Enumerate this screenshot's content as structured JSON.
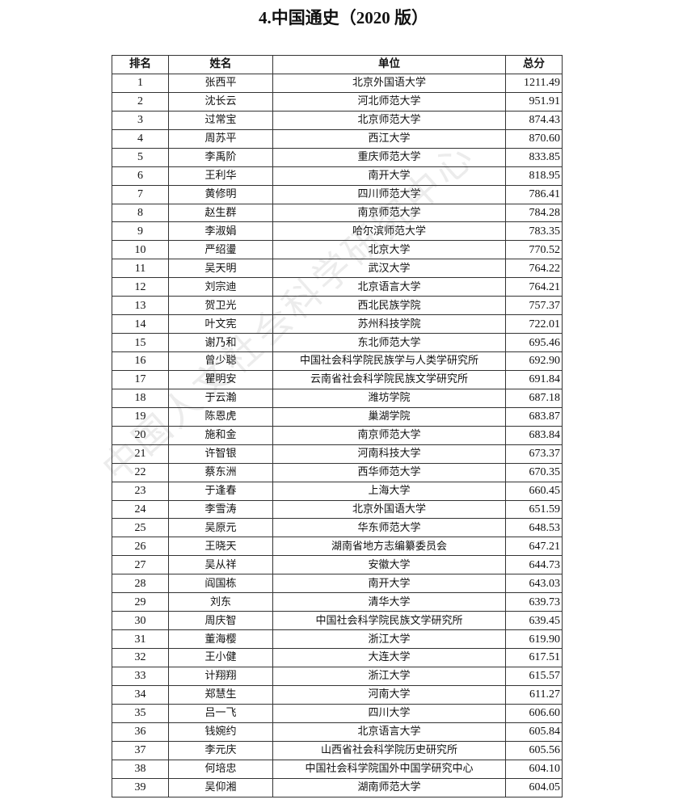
{
  "title": "4.中国通史（2020 版）",
  "table": {
    "headers": [
      "排名",
      "姓名",
      "单位",
      "总分"
    ],
    "rows": [
      [
        "1",
        "张西平",
        "北京外国语大学",
        "1211.49"
      ],
      [
        "2",
        "沈长云",
        "河北师范大学",
        "951.91"
      ],
      [
        "3",
        "过常宝",
        "北京师范大学",
        "874.43"
      ],
      [
        "4",
        "周苏平",
        "西江大学",
        "870.60"
      ],
      [
        "5",
        "李禹阶",
        "重庆师范大学",
        "833.85"
      ],
      [
        "6",
        "王利华",
        "南开大学",
        "818.95"
      ],
      [
        "7",
        "黄修明",
        "四川师范大学",
        "786.41"
      ],
      [
        "8",
        "赵生群",
        "南京师范大学",
        "784.28"
      ],
      [
        "9",
        "李淑娟",
        "哈尔滨师范大学",
        "783.35"
      ],
      [
        "10",
        "严绍璗",
        "北京大学",
        "770.52"
      ],
      [
        "11",
        "吴天明",
        "武汉大学",
        "764.22"
      ],
      [
        "12",
        "刘宗迪",
        "北京语言大学",
        "764.21"
      ],
      [
        "13",
        "贺卫光",
        "西北民族学院",
        "757.37"
      ],
      [
        "14",
        "叶文宪",
        "苏州科技学院",
        "722.01"
      ],
      [
        "15",
        "谢乃和",
        "东北师范大学",
        "695.46"
      ],
      [
        "16",
        "曾少聪",
        "中国社会科学院民族学与人类学研究所",
        "692.90"
      ],
      [
        "17",
        "瞿明安",
        "云南省社会科学院民族文学研究所",
        "691.84"
      ],
      [
        "18",
        "于云瀚",
        "潍坊学院",
        "687.18"
      ],
      [
        "19",
        "陈恩虎",
        "巢湖学院",
        "683.87"
      ],
      [
        "20",
        "施和金",
        "南京师范大学",
        "683.84"
      ],
      [
        "21",
        "许智银",
        "河南科技大学",
        "673.37"
      ],
      [
        "22",
        "蔡东洲",
        "西华师范大学",
        "670.35"
      ],
      [
        "23",
        "于逢春",
        "上海大学",
        "660.45"
      ],
      [
        "24",
        "李雪涛",
        "北京外国语大学",
        "651.59"
      ],
      [
        "25",
        "吴原元",
        "华东师范大学",
        "648.53"
      ],
      [
        "26",
        "王晓天",
        "湖南省地方志编纂委员会",
        "647.21"
      ],
      [
        "27",
        "吴从祥",
        "安徽大学",
        "644.73"
      ],
      [
        "28",
        "阎国栋",
        "南开大学",
        "643.03"
      ],
      [
        "29",
        "刘东",
        "清华大学",
        "639.73"
      ],
      [
        "30",
        "周庆智",
        "中国社会科学院民族文学研究所",
        "639.45"
      ],
      [
        "31",
        "董海樱",
        "浙江大学",
        "619.90"
      ],
      [
        "32",
        "王小健",
        "大连大学",
        "617.51"
      ],
      [
        "33",
        "计翔翔",
        "浙江大学",
        "615.57"
      ],
      [
        "34",
        "郑慧生",
        "河南大学",
        "611.27"
      ],
      [
        "35",
        "吕一飞",
        "四川大学",
        "606.60"
      ],
      [
        "36",
        "钱婉约",
        "北京语言大学",
        "605.84"
      ],
      [
        "37",
        "李元庆",
        "山西省社会科学院历史研究所",
        "605.56"
      ],
      [
        "38",
        "何培忠",
        "中国社会科学院国外中国学研究中心",
        "604.10"
      ],
      [
        "39",
        "吴仰湘",
        "湖南师范大学",
        "604.05"
      ]
    ]
  },
  "watermark": "中国人文社会科学研究中心"
}
